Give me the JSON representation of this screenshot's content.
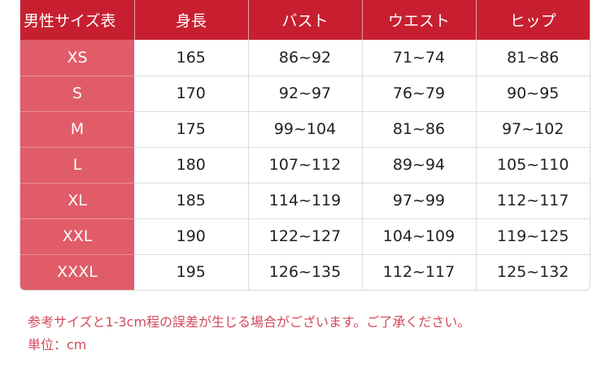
{
  "table": {
    "headers": [
      "男性サイズ表",
      "身長",
      "バスト",
      "ウエスト",
      "ヒップ"
    ],
    "rows": [
      [
        "XS",
        "165",
        "86~92",
        "71~74",
        "81~86"
      ],
      [
        "S",
        "170",
        "92~97",
        "76~79",
        "90~95"
      ],
      [
        "M",
        "175",
        "99~104",
        "81~86",
        "97~102"
      ],
      [
        "L",
        "180",
        "107~112",
        "89~94",
        "105~110"
      ],
      [
        "XL",
        "185",
        "114~119",
        "97~99",
        "112~117"
      ],
      [
        "XXL",
        "190",
        "122~127",
        "104~109",
        "119~125"
      ],
      [
        "XXXL",
        "195",
        "126~135",
        "112~117",
        "125~132"
      ]
    ]
  },
  "notes": {
    "disclaimer": "参考サイズと1-3cm程の誤差が生じる場合がございます。ご了承ください。",
    "unit": "単位：cm"
  },
  "colors": {
    "header": "#c71f30",
    "size_column": "#e05c69",
    "note_text": "#d2495b"
  }
}
